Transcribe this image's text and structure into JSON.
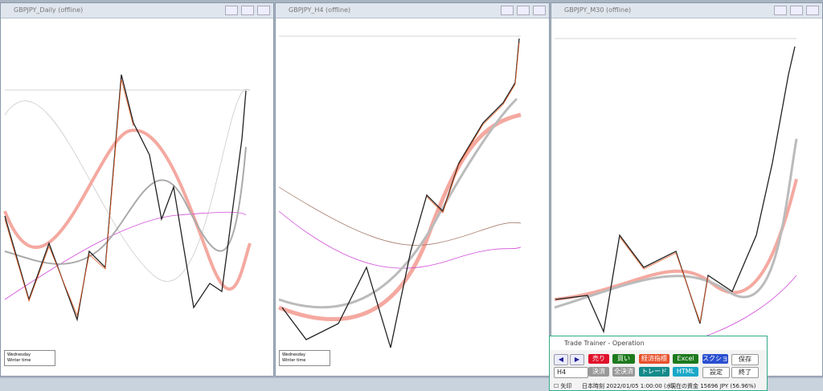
{
  "windows": [
    {
      "title": "GBPJPY_Daily (offline)",
      "info": [
        "Wednesday",
        "Winter time"
      ]
    },
    {
      "title": "GBPJPY_H4 (offline)",
      "info": [
        "Wednesday",
        "Winter time"
      ]
    },
    {
      "title": "GBPJPY_M30 (offline)"
    }
  ],
  "panel": {
    "title": "Trade Trainer - Operation",
    "row1": [
      "売り",
      "買い",
      "経済指標",
      "Excel",
      "スクショ",
      "保存"
    ],
    "timeframe": "H4",
    "row2": [
      "決済",
      "全決済",
      "トレード",
      "HTML",
      "設定",
      "終了"
    ],
    "checkbox": "矢印",
    "time": "日本時刻 2022/01/05 1:00:00 (水)",
    "funds": "現在の資金 15696 JPY (56.96%)"
  }
}
